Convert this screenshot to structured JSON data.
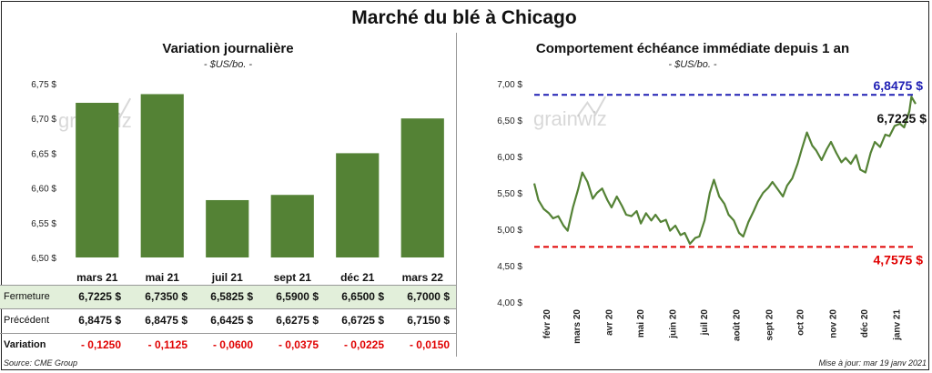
{
  "title": "Marché du blé à Chicago",
  "left": {
    "subtitle": "Variation journalière",
    "unit": "- $US/bo. -",
    "row_labels": {
      "close": "Fermeture",
      "previous": "Précédent",
      "variation": "Variation"
    },
    "close_values": [
      "6,7225  $",
      "6,7350  $",
      "6,5825  $",
      "6,5900  $",
      "6,6500  $",
      "6,7000  $"
    ],
    "previous_values": [
      "6,8475  $",
      "6,8475  $",
      "6,6425  $",
      "6,6275  $",
      "6,6725  $",
      "6,7150  $"
    ],
    "variation_values": [
      "- 0,1250",
      "- 0,1125",
      "- 0,0600",
      "- 0,0375",
      "- 0,0225",
      "- 0,0150"
    ]
  },
  "right": {
    "subtitle": "Comportement  échéance immédiate depuis 1 an",
    "unit": "- $US/bo. -",
    "high_label": "6,8475  $",
    "low_label": "4,7575  $",
    "last_label": "6,7225 $"
  },
  "watermark": "grainwiz",
  "source": "Source: CME Group",
  "update": "Mise à jour: mar 19 janv 2021",
  "colors": {
    "bar": "#548235",
    "line": "#548235",
    "high": "#1f1fb4",
    "low": "#e00000"
  },
  "chart_data": [
    {
      "type": "bar",
      "title": "Variation journalière",
      "categories": [
        "mars 21",
        "mai 21",
        "juil 21",
        "sept 21",
        "déc 21",
        "mars 22"
      ],
      "values": [
        6.7225,
        6.735,
        6.5825,
        6.59,
        6.65,
        6.7
      ],
      "ylim": [
        6.5,
        6.75
      ],
      "yticks": [
        6.5,
        6.55,
        6.6,
        6.65,
        6.7,
        6.75
      ],
      "ytick_labels": [
        "6,50 $",
        "6,55 $",
        "6,60 $",
        "6,65 $",
        "6,70 $",
        "6,75 $"
      ],
      "grid": false
    },
    {
      "type": "line",
      "title": "Comportement  échéance immédiate depuis 1 an",
      "ylim": [
        4.0,
        7.0
      ],
      "yticks": [
        4.0,
        4.5,
        5.0,
        5.5,
        6.0,
        6.5,
        7.0
      ],
      "ytick_labels": [
        "4,00 $",
        "4,50 $",
        "5,00 $",
        "5,50 $",
        "6,00 $",
        "6,50 $",
        "7,00 $"
      ],
      "xtick_labels": [
        "févr 20",
        "mars 20",
        "avr 20",
        "mai 20",
        "juin 20",
        "juil 20",
        "août 20",
        "sept 20",
        "oct 20",
        "nov 20",
        "déc 20",
        "janv 21"
      ],
      "reference_lines": [
        {
          "value": 6.8475,
          "style": "dashed",
          "color": "#1f1fb4"
        },
        {
          "value": 4.7575,
          "style": "dashed",
          "color": "#e00000"
        }
      ],
      "series": [
        {
          "x": [
            "2020-01-20",
            "2020-01-24",
            "2020-01-29",
            "2020-02-03",
            "2020-02-07",
            "2020-02-12",
            "2020-02-17",
            "2020-02-21",
            "2020-02-26",
            "2020-03-02",
            "2020-03-06",
            "2020-03-11",
            "2020-03-16",
            "2020-03-20",
            "2020-03-25",
            "2020-03-30",
            "2020-04-03",
            "2020-04-08",
            "2020-04-13",
            "2020-04-17",
            "2020-04-22",
            "2020-04-27",
            "2020-05-01",
            "2020-05-06",
            "2020-05-11",
            "2020-05-15",
            "2020-05-20",
            "2020-05-25",
            "2020-05-29",
            "2020-06-03",
            "2020-06-08",
            "2020-06-12",
            "2020-06-17",
            "2020-06-22",
            "2020-06-26",
            "2020-07-01",
            "2020-07-06",
            "2020-07-10",
            "2020-07-15",
            "2020-07-20",
            "2020-07-24",
            "2020-07-29",
            "2020-08-03",
            "2020-08-07",
            "2020-08-12",
            "2020-08-17",
            "2020-08-21",
            "2020-08-26",
            "2020-08-31",
            "2020-09-04",
            "2020-09-09",
            "2020-09-14",
            "2020-09-18",
            "2020-09-23",
            "2020-09-28",
            "2020-10-02",
            "2020-10-07",
            "2020-10-12",
            "2020-10-16",
            "2020-10-21",
            "2020-10-26",
            "2020-10-30",
            "2020-11-04",
            "2020-11-09",
            "2020-11-13",
            "2020-11-18",
            "2020-11-23",
            "2020-11-27",
            "2020-12-02",
            "2020-12-07",
            "2020-12-11",
            "2020-12-16",
            "2020-12-21",
            "2020-12-25",
            "2020-12-30",
            "2021-01-04",
            "2021-01-08",
            "2021-01-13",
            "2021-01-15",
            "2021-01-19"
          ],
          "values": [
            5.63,
            5.4,
            5.28,
            5.22,
            5.15,
            5.18,
            5.05,
            4.98,
            5.3,
            5.55,
            5.78,
            5.65,
            5.42,
            5.5,
            5.56,
            5.4,
            5.3,
            5.45,
            5.32,
            5.2,
            5.18,
            5.25,
            5.08,
            5.22,
            5.12,
            5.2,
            5.1,
            5.13,
            4.98,
            5.05,
            4.92,
            4.95,
            4.8,
            4.88,
            4.9,
            5.12,
            5.5,
            5.68,
            5.45,
            5.35,
            5.2,
            5.12,
            4.95,
            4.9,
            5.1,
            5.25,
            5.38,
            5.5,
            5.57,
            5.65,
            5.55,
            5.45,
            5.6,
            5.7,
            5.9,
            6.1,
            6.33,
            6.15,
            6.08,
            5.95,
            6.1,
            6.2,
            6.05,
            5.92,
            5.98,
            5.9,
            6.02,
            5.82,
            5.78,
            6.05,
            6.2,
            6.13,
            6.3,
            6.28,
            6.42,
            6.45,
            6.4,
            6.62,
            6.82,
            6.7225
          ]
        }
      ]
    }
  ]
}
